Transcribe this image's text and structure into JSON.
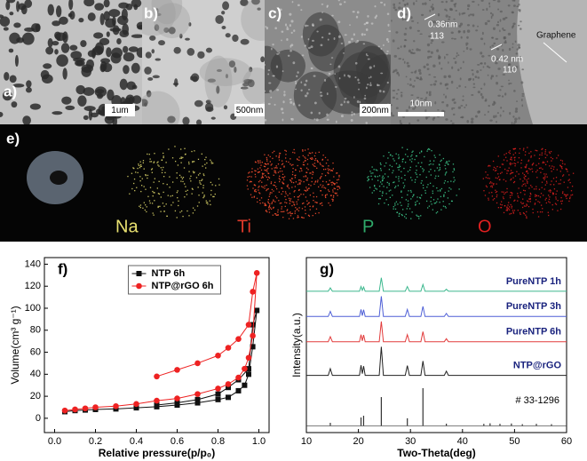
{
  "images": [
    {
      "label": "a)",
      "scale_bar": "1um"
    },
    {
      "label": "b)",
      "scale_bar": "500nm"
    },
    {
      "label": "c)",
      "scale_bar": "200nm"
    },
    {
      "label": "d)",
      "scale_bar": "10nm",
      "annotations": [
        "0.36nm",
        "113",
        "0.42 nm",
        "110",
        "Graphene"
      ]
    }
  ],
  "mapping": {
    "label": "e)",
    "elements": [
      "Na",
      "Ti",
      "P",
      "O"
    ]
  },
  "chart_data": [
    {
      "type": "line",
      "panel_label": "f)",
      "x_label": "Relative pressure(p/p₀)",
      "y_label": "Volume(cm³ g⁻¹)",
      "x": [
        0.05,
        0.1,
        0.15,
        0.2,
        0.3,
        0.4,
        0.5,
        0.6,
        0.7,
        0.8,
        0.85,
        0.9,
        0.93,
        0.95,
        0.97,
        0.99,
        0.97,
        0.95,
        0.9,
        0.85,
        0.8,
        0.7,
        0.6,
        0.5
      ],
      "series": [
        {
          "name": "NTP 6h",
          "color": "#111111",
          "marker": "square",
          "values": [
            6,
            7,
            7.5,
            8,
            8.5,
            9.5,
            10.5,
            12,
            14,
            17,
            19,
            25,
            30,
            40,
            65,
            98,
            85,
            45,
            35,
            28,
            22,
            17,
            14,
            12
          ]
        },
        {
          "name": "NTP@rGO 6h",
          "color": "#ee2222",
          "marker": "circle",
          "values": [
            7,
            8,
            9,
            10,
            11,
            13,
            16,
            18,
            22,
            27,
            31,
            37,
            45,
            55,
            75,
            132,
            115,
            85,
            72,
            64,
            57,
            50,
            44,
            38
          ]
        }
      ],
      "xlim": [
        -0.05,
        1.05
      ],
      "ylim": [
        -13,
        146
      ],
      "xticks": [
        {
          "value": 0,
          "label": "0.0"
        },
        {
          "value": 0.2,
          "label": "0.2"
        },
        {
          "value": 0.4,
          "label": "0.4"
        },
        {
          "value": 0.6,
          "label": "0.6"
        },
        {
          "value": 0.8,
          "label": "0.8"
        },
        {
          "value": 1,
          "label": "1.0"
        }
      ],
      "yticks": [
        0,
        20,
        40,
        60,
        80,
        100,
        120,
        140
      ],
      "legend": "upper center"
    },
    {
      "type": "line",
      "panel_label": "g)",
      "x_label": "Two-Theta(deg)",
      "y_label": "Intensity(a.u.)",
      "x": [
        10,
        14.2,
        14.6,
        15,
        20.2,
        20.5,
        20.75,
        21,
        21.3,
        24,
        24.4,
        24.8,
        29,
        29.4,
        29.8,
        32,
        32.4,
        32.8,
        36.5,
        36.9,
        37.3,
        60
      ],
      "series": [
        {
          "name": "PureNTP 1h",
          "color": "#3cb88e",
          "values": [
            80,
            80,
            82,
            80,
            80,
            82.8,
            80.5,
            82.5,
            80,
            80,
            88,
            80,
            80,
            82.8,
            80,
            80,
            84,
            80,
            80,
            81.2,
            80,
            80
          ]
        },
        {
          "name": "PureNTP 3h",
          "color": "#4e5fd6",
          "values": [
            65,
            65,
            68,
            65,
            65,
            69.2,
            65.5,
            69,
            65,
            65,
            77,
            65,
            65,
            69.2,
            65,
            65,
            71,
            65,
            65,
            66.8,
            65,
            65
          ]
        },
        {
          "name": "PureNTP 6h",
          "color": "#e23b3b",
          "values": [
            50,
            50,
            53,
            50,
            50,
            54.2,
            50.5,
            54,
            50,
            50,
            62,
            50,
            50,
            54.2,
            50,
            50,
            56,
            50,
            50,
            51.8,
            50,
            50
          ]
        },
        {
          "name": "NTP@rGO",
          "color": "#222222",
          "values": [
            30,
            30,
            34,
            30,
            30,
            36,
            31,
            35.5,
            30,
            30,
            47,
            30,
            30,
            35.8,
            30,
            30,
            38.5,
            30,
            30,
            32.5,
            30,
            30
          ]
        }
      ],
      "reference": {
        "name": "# 33-1296",
        "color": "#333333",
        "x": [
          14.6,
          20.5,
          21,
          24.4,
          29.4,
          32.4,
          36.9,
          44.1,
          45.3,
          47.2,
          49.4,
          51.5,
          54.2,
          57.1
        ],
        "values": [
          1.8,
          5,
          6,
          17.1,
          4.5,
          22.4,
          1.3,
          1.2,
          1.5,
          1.2,
          1.4,
          1,
          1.2,
          1
        ]
      },
      "xlim": [
        10,
        60
      ],
      "ylim": [
        -4,
        100
      ],
      "xticks": [
        10,
        20,
        30,
        40,
        50,
        60
      ]
    }
  ]
}
